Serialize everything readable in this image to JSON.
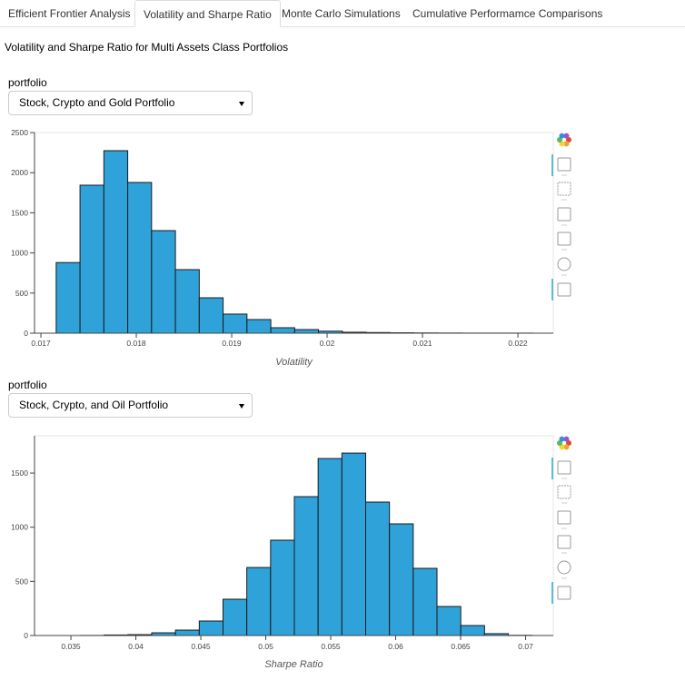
{
  "tabs": [
    "Efficient Frontier Analysis",
    "Volatility and Sharpe Ratio",
    "Monte Carlo Simulations",
    "Cumulative Performamce Comparisons"
  ],
  "heading": "Volatility and Sharpe Ratio for Multi Assets Class Portfolios",
  "selectors": [
    {
      "label": "portfolio",
      "value": "Stock, Crypto and Gold Portfolio"
    },
    {
      "label": "portfolio",
      "value": "Stock, Crypto, and Oil Portfolio"
    }
  ],
  "chart_data": [
    {
      "type": "histogram",
      "x_label": "Volatility",
      "color": "#30a2da",
      "bins": [
        0.01716,
        0.01741,
        0.01766,
        0.01791,
        0.01816,
        0.01841,
        0.01866,
        0.01891,
        0.01916,
        0.01941,
        0.01966,
        0.01991,
        0.02016,
        0.02041,
        0.02066,
        0.02091,
        0.02116,
        0.02141,
        0.02166,
        0.02191,
        0.02216
      ],
      "values": [
        880,
        1844,
        2274,
        1878,
        1278,
        792,
        441,
        238,
        170,
        68,
        45,
        25,
        12,
        8,
        5,
        3,
        2,
        1,
        1,
        1
      ],
      "xlim": [
        0.016933,
        0.022371
      ],
      "ylim": [
        0,
        2500
      ],
      "xticks": [
        0.017,
        0.018,
        0.019,
        0.02,
        0.021,
        0.022
      ],
      "yticks": [
        0,
        500,
        1000,
        1500,
        2000,
        2500
      ]
    },
    {
      "type": "histogram",
      "x_label": "Sharpe Ratio",
      "color": "#30a2da",
      "bins": [
        0.0339,
        0.03573,
        0.03756,
        0.03939,
        0.04122,
        0.04305,
        0.04488,
        0.04671,
        0.04854,
        0.05037,
        0.0522,
        0.05403,
        0.05586,
        0.05769,
        0.05952,
        0.06135,
        0.06318,
        0.06501,
        0.06684,
        0.06867,
        0.0705
      ],
      "values": [
        0,
        1,
        5,
        8,
        25,
        50,
        134,
        335,
        628,
        880,
        1282,
        1634,
        1684,
        1232,
        1031,
        620,
        268,
        92,
        17,
        2
      ],
      "xlim": [
        0.0322,
        0.07213
      ],
      "ylim": [
        0,
        1844
      ],
      "xticks": [
        0.035,
        0.04,
        0.045,
        0.05,
        0.055,
        0.06,
        0.065,
        0.07
      ],
      "yticks": [
        0,
        500,
        1000,
        1500
      ]
    }
  ]
}
